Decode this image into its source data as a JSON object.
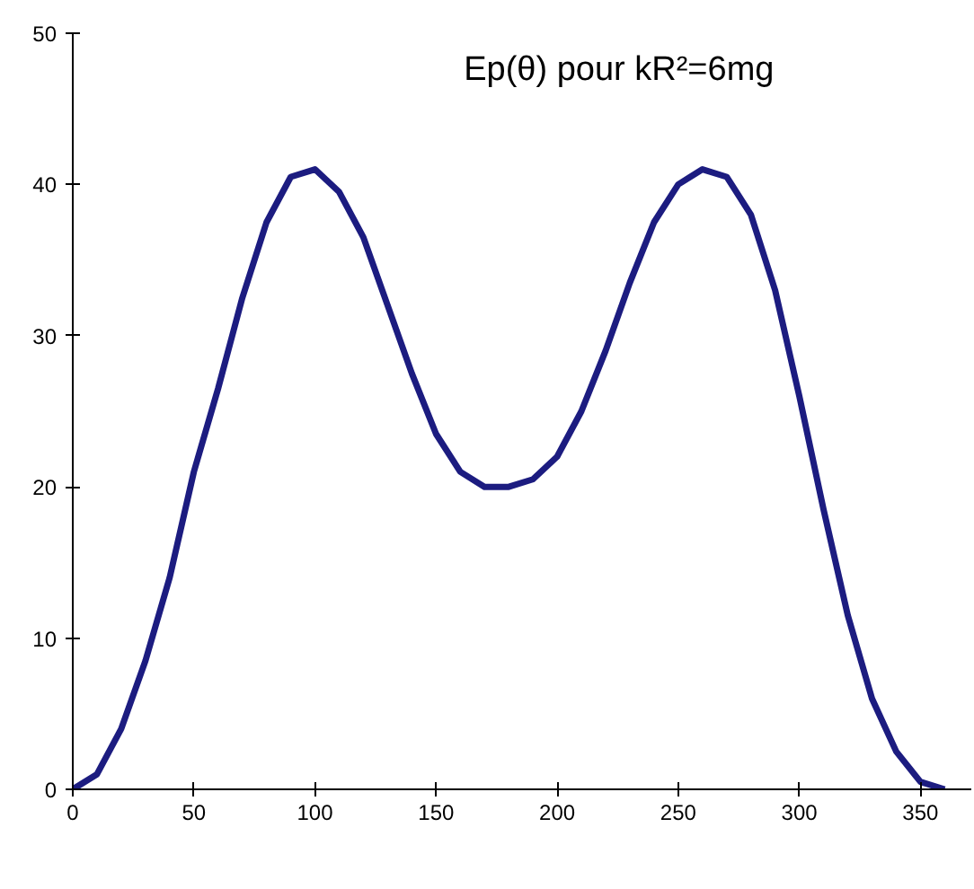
{
  "chart_data": {
    "type": "line",
    "title": "Ep(θ) pour kR²=6mg",
    "x": [
      0,
      10,
      20,
      30,
      40,
      50,
      60,
      70,
      80,
      90,
      100,
      110,
      120,
      130,
      140,
      150,
      160,
      170,
      180,
      190,
      200,
      210,
      220,
      230,
      240,
      250,
      260,
      270,
      280,
      290,
      300,
      310,
      320,
      330,
      340,
      350,
      360
    ],
    "series": [
      {
        "color": "#1c1c80",
        "values": [
          0,
          1,
          4,
          8.5,
          14,
          21,
          26.5,
          32.5,
          37.5,
          40.5,
          41,
          39.5,
          36.5,
          32,
          27.5,
          23.5,
          21,
          20,
          20,
          20.5,
          22,
          25,
          29,
          33.5,
          37.5,
          40,
          41,
          40.5,
          38,
          33,
          26,
          18.5,
          11.5,
          6,
          2.5,
          0.5,
          0
        ]
      }
    ],
    "xlim": [
      0,
      371
    ],
    "ylim": [
      0,
      50
    ],
    "xticks": [
      0,
      50,
      100,
      150,
      200,
      250,
      300,
      350
    ],
    "yticks": [
      0,
      10,
      20,
      30,
      40,
      50
    ],
    "grid": false,
    "marker": "none",
    "line_style": "solid"
  }
}
